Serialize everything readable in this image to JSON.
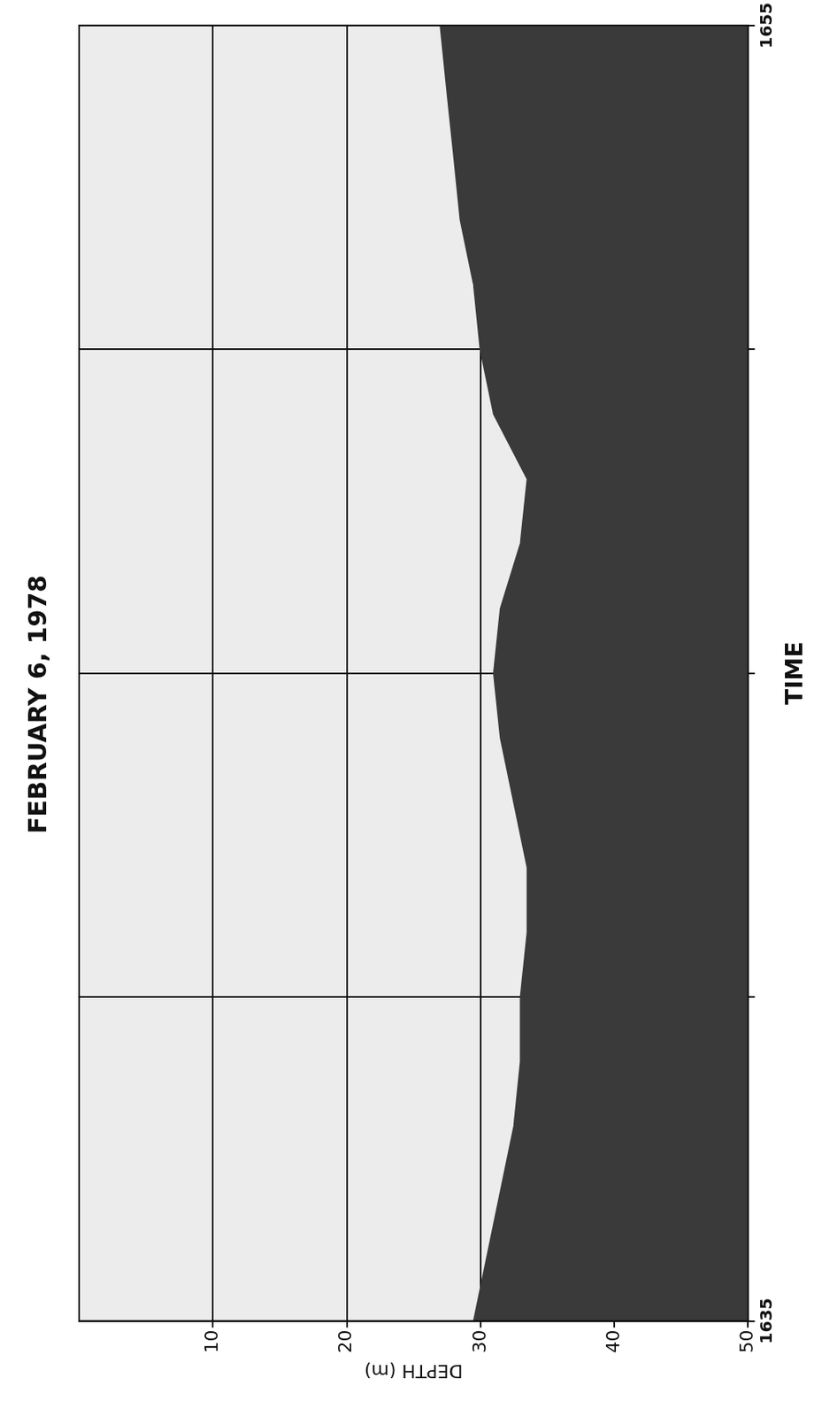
{
  "chart_data": {
    "type": "area",
    "title": "FEBRUARY 6, 1978",
    "x_label": "TIME",
    "y_label": "DEPTH (m)",
    "x": [
      1635,
      1636,
      1637,
      1638,
      1639,
      1640,
      1641,
      1642,
      1643,
      1644,
      1645,
      1646,
      1647,
      1648,
      1649,
      1650,
      1651,
      1652,
      1653,
      1654,
      1655
    ],
    "values": [
      29.5,
      30.5,
      31.5,
      32.5,
      33,
      33,
      33.5,
      33.5,
      32.5,
      31.5,
      31,
      31.5,
      33,
      33.5,
      31,
      30,
      29.5,
      28.5,
      28,
      27.5,
      27
    ],
    "color": "#3a3a3a",
    "xlim": [
      1635,
      1655
    ],
    "xticks": [
      1635,
      {
        "value": 1640,
        "label": null
      },
      {
        "value": 1645,
        "label": null
      },
      {
        "value": 1650,
        "label": null
      },
      1655
    ],
    "ylim": [
      0,
      50
    ],
    "yticks": [
      10,
      20,
      30,
      40,
      50
    ],
    "grid": true
  }
}
